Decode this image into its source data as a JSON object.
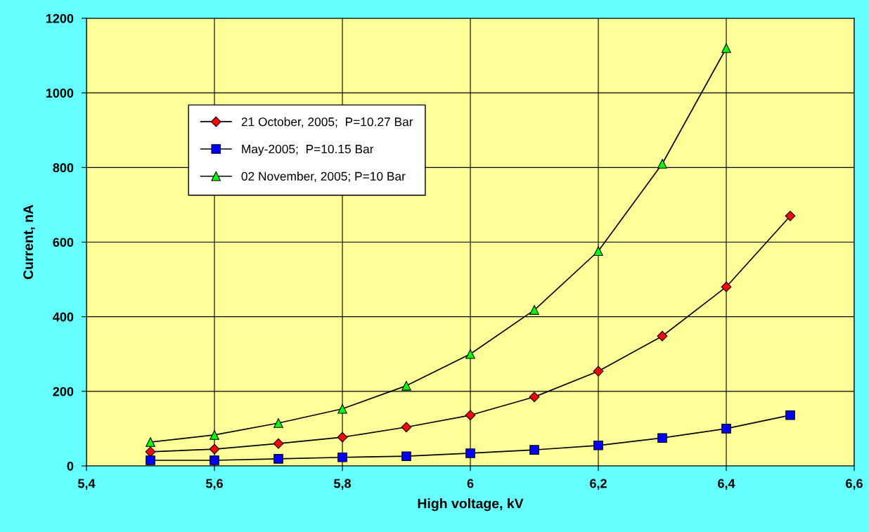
{
  "chart_data": {
    "type": "line",
    "xlabel": "High voltage, kV",
    "ylabel": "Current, nA",
    "xlim": [
      5.4,
      6.6
    ],
    "xticks": [
      {
        "value": 5.4,
        "label": "5,4"
      },
      {
        "value": 5.6,
        "label": "5,6"
      },
      {
        "value": 5.8,
        "label": "5,8"
      },
      {
        "value": 6,
        "label": "6"
      },
      {
        "value": 6.2,
        "label": "6,2"
      },
      {
        "value": 6.4,
        "label": "6,4"
      },
      {
        "value": 6.6,
        "label": "6,6"
      }
    ],
    "ylim": [
      0,
      1200
    ],
    "yticks": [
      0,
      200,
      400,
      600,
      800,
      1000,
      1200
    ],
    "grid": true,
    "legend": "top left",
    "series": [
      {
        "name": "21 October, 2005;  P=10.27 Bar",
        "color": "#ff0000",
        "marker": "diamond",
        "x": [
          5.5,
          5.6,
          5.7,
          5.8,
          5.9,
          6.0,
          6.1,
          6.2,
          6.3,
          6.4,
          6.5
        ],
        "values": [
          38,
          45,
          60,
          77,
          104,
          136,
          185,
          254,
          348,
          480,
          670
        ]
      },
      {
        "name": "May-2005;  P=10.15 Bar",
        "color": "#0000ff",
        "marker": "square",
        "x": [
          5.5,
          5.6,
          5.7,
          5.8,
          5.9,
          6.0,
          6.1,
          6.2,
          6.3,
          6.4,
          6.5
        ],
        "values": [
          15,
          15,
          19,
          23,
          26,
          34,
          43,
          55,
          75,
          100,
          136
        ]
      },
      {
        "name": "02 November, 2005; P=10 Bar",
        "color": "#00ff00",
        "marker": "triangle",
        "x": [
          5.5,
          5.6,
          5.7,
          5.8,
          5.9,
          6.0,
          6.1,
          6.2,
          6.3,
          6.4
        ],
        "values": [
          64,
          83,
          115,
          153,
          215,
          300,
          418,
          576,
          810,
          1120
        ]
      }
    ]
  }
}
